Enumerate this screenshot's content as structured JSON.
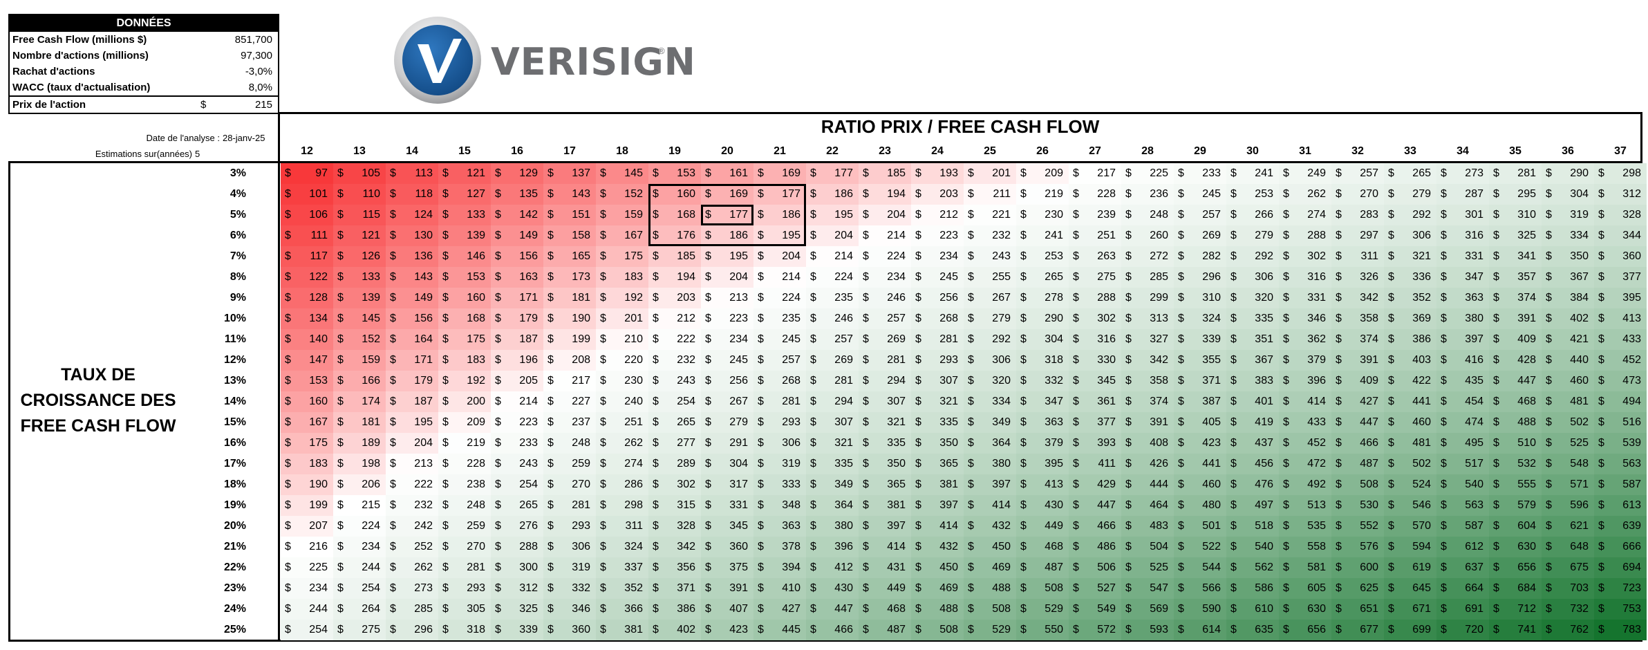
{
  "inputs": {
    "title": "DONNÉES",
    "rows": [
      {
        "label": "Free Cash Flow (millions $)",
        "value": "851,700"
      },
      {
        "label": "Nombre d'actions (millions)",
        "value": "97,300"
      },
      {
        "label": "Rachat d'actions",
        "value": "-3,0%"
      },
      {
        "label": "WACC (taux d'actualisation)",
        "value": "8,0%"
      }
    ],
    "price": {
      "label": "Prix de l'action",
      "currency": "$",
      "value": "215"
    }
  },
  "logo": {
    "text": "VERISIGN",
    "tm": "®",
    "colors": {
      "blue": "#1c5a9b",
      "gray": "#6d6e71"
    }
  },
  "meta": {
    "date_label": "Date de l'analyse :",
    "date_value": "28-janv-25",
    "est_label": "Estimations sur(années)",
    "est_value": "5"
  },
  "table": {
    "title": "RATIO PRIX / FREE CASH FLOW",
    "side_label": [
      "TAUX DE",
      "CROISSANCE DES",
      "FREE CASH FLOW"
    ],
    "ratios": [
      "12",
      "13",
      "14",
      "15",
      "16",
      "17",
      "18",
      "19",
      "20",
      "21",
      "22",
      "23",
      "24",
      "25",
      "26",
      "27",
      "28",
      "29",
      "30",
      "31",
      "32",
      "33",
      "34",
      "35",
      "36",
      "37"
    ],
    "growth": [
      "3%",
      "4%",
      "5%",
      "6%",
      "7%",
      "8%",
      "9%",
      "10%",
      "11%",
      "12%",
      "13%",
      "14%",
      "15%",
      "16%",
      "17%",
      "18%",
      "19%",
      "20%",
      "21%",
      "22%",
      "23%",
      "24%",
      "25%"
    ],
    "currency": "$",
    "current_price": 215,
    "highlight": {
      "ratio": "20",
      "growth": "5%"
    },
    "near_box": {
      "ratios": [
        "19",
        "21"
      ],
      "growth": [
        "4%",
        "6%"
      ]
    },
    "colors": {
      "low": "#f8383a",
      "mid": "#ffffff",
      "high": "#15742e"
    },
    "values": [
      [
        97,
        105,
        113,
        121,
        129,
        137,
        145,
        153,
        161,
        169,
        177,
        185,
        193,
        201,
        209,
        217,
        225,
        233,
        241,
        249,
        257,
        265,
        273,
        281,
        290,
        298
      ],
      [
        101,
        110,
        118,
        127,
        135,
        143,
        152,
        160,
        169,
        177,
        186,
        194,
        203,
        211,
        219,
        228,
        236,
        245,
        253,
        262,
        270,
        279,
        287,
        295,
        304,
        312
      ],
      [
        106,
        115,
        124,
        133,
        142,
        151,
        159,
        168,
        177,
        186,
        195,
        204,
        212,
        221,
        230,
        239,
        248,
        257,
        266,
        274,
        283,
        292,
        301,
        310,
        319,
        328
      ],
      [
        111,
        121,
        130,
        139,
        149,
        158,
        167,
        176,
        186,
        195,
        204,
        214,
        223,
        232,
        241,
        251,
        260,
        269,
        279,
        288,
        297,
        306,
        316,
        325,
        334,
        344
      ],
      [
        117,
        126,
        136,
        146,
        156,
        165,
        175,
        185,
        195,
        204,
        214,
        224,
        234,
        243,
        253,
        263,
        272,
        282,
        292,
        302,
        311,
        321,
        331,
        341,
        350,
        360
      ],
      [
        122,
        133,
        143,
        153,
        163,
        173,
        183,
        194,
        204,
        214,
        224,
        234,
        245,
        255,
        265,
        275,
        285,
        296,
        306,
        316,
        326,
        336,
        347,
        357,
        367,
        377
      ],
      [
        128,
        139,
        149,
        160,
        171,
        181,
        192,
        203,
        213,
        224,
        235,
        246,
        256,
        267,
        278,
        288,
        299,
        310,
        320,
        331,
        342,
        352,
        363,
        374,
        384,
        395
      ],
      [
        134,
        145,
        156,
        168,
        179,
        190,
        201,
        212,
        223,
        235,
        246,
        257,
        268,
        279,
        290,
        302,
        313,
        324,
        335,
        346,
        358,
        369,
        380,
        391,
        402,
        413
      ],
      [
        140,
        152,
        164,
        175,
        187,
        199,
        210,
        222,
        234,
        245,
        257,
        269,
        281,
        292,
        304,
        316,
        327,
        339,
        351,
        362,
        374,
        386,
        397,
        409,
        421,
        433
      ],
      [
        147,
        159,
        171,
        183,
        196,
        208,
        220,
        232,
        245,
        257,
        269,
        281,
        293,
        306,
        318,
        330,
        342,
        355,
        367,
        379,
        391,
        403,
        416,
        428,
        440,
        452
      ],
      [
        153,
        166,
        179,
        192,
        205,
        217,
        230,
        243,
        256,
        268,
        281,
        294,
        307,
        320,
        332,
        345,
        358,
        371,
        383,
        396,
        409,
        422,
        435,
        447,
        460,
        473
      ],
      [
        160,
        174,
        187,
        200,
        214,
        227,
        240,
        254,
        267,
        281,
        294,
        307,
        321,
        334,
        347,
        361,
        374,
        387,
        401,
        414,
        427,
        441,
        454,
        468,
        481,
        494
      ],
      [
        167,
        181,
        195,
        209,
        223,
        237,
        251,
        265,
        279,
        293,
        307,
        321,
        335,
        349,
        363,
        377,
        391,
        405,
        419,
        433,
        447,
        460,
        474,
        488,
        502,
        516
      ],
      [
        175,
        189,
        204,
        219,
        233,
        248,
        262,
        277,
        291,
        306,
        321,
        335,
        350,
        364,
        379,
        393,
        408,
        423,
        437,
        452,
        466,
        481,
        495,
        510,
        525,
        539
      ],
      [
        183,
        198,
        213,
        228,
        243,
        259,
        274,
        289,
        304,
        319,
        335,
        350,
        365,
        380,
        395,
        411,
        426,
        441,
        456,
        472,
        487,
        502,
        517,
        532,
        548,
        563
      ],
      [
        190,
        206,
        222,
        238,
        254,
        270,
        286,
        302,
        317,
        333,
        349,
        365,
        381,
        397,
        413,
        429,
        444,
        460,
        476,
        492,
        508,
        524,
        540,
        555,
        571,
        587
      ],
      [
        199,
        215,
        232,
        248,
        265,
        281,
        298,
        315,
        331,
        348,
        364,
        381,
        397,
        414,
        430,
        447,
        464,
        480,
        497,
        513,
        530,
        546,
        563,
        579,
        596,
        613
      ],
      [
        207,
        224,
        242,
        259,
        276,
        293,
        311,
        328,
        345,
        363,
        380,
        397,
        414,
        432,
        449,
        466,
        483,
        501,
        518,
        535,
        552,
        570,
        587,
        604,
        621,
        639
      ],
      [
        216,
        234,
        252,
        270,
        288,
        306,
        324,
        342,
        360,
        378,
        396,
        414,
        432,
        450,
        468,
        486,
        504,
        522,
        540,
        558,
        576,
        594,
        612,
        630,
        648,
        666
      ],
      [
        225,
        244,
        262,
        281,
        300,
        319,
        337,
        356,
        375,
        394,
        412,
        431,
        450,
        469,
        487,
        506,
        525,
        544,
        562,
        581,
        600,
        619,
        637,
        656,
        675,
        694
      ],
      [
        234,
        254,
        273,
        293,
        312,
        332,
        352,
        371,
        391,
        410,
        430,
        449,
        469,
        488,
        508,
        527,
        547,
        566,
        586,
        605,
        625,
        645,
        664,
        684,
        703,
        723
      ],
      [
        244,
        264,
        285,
        305,
        325,
        346,
        366,
        386,
        407,
        427,
        447,
        468,
        488,
        508,
        529,
        549,
        569,
        590,
        610,
        630,
        651,
        671,
        691,
        712,
        732,
        753
      ],
      [
        254,
        275,
        296,
        318,
        339,
        360,
        381,
        402,
        423,
        445,
        466,
        487,
        508,
        529,
        550,
        572,
        593,
        614,
        635,
        656,
        677,
        699,
        720,
        741,
        762,
        783
      ]
    ]
  }
}
